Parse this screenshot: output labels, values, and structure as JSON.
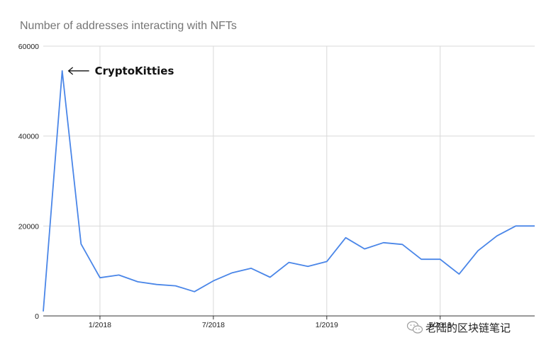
{
  "chart_data": {
    "type": "line",
    "title": "Number of addresses interacting with NFTs",
    "xlabel": "",
    "ylabel": "",
    "x": [
      "2017-10",
      "2017-11",
      "2017-12",
      "2018-01",
      "2018-02",
      "2018-03",
      "2018-04",
      "2018-05",
      "2018-06",
      "2018-07",
      "2018-08",
      "2018-09",
      "2018-10",
      "2018-11",
      "2018-12",
      "2019-01",
      "2019-02",
      "2019-03",
      "2019-04",
      "2019-05",
      "2019-06",
      "2019-07",
      "2019-08",
      "2019-09",
      "2019-10",
      "2019-11",
      "2019-12"
    ],
    "series": [
      {
        "values": [
          1000,
          54500,
          16000,
          8500,
          9100,
          7600,
          7000,
          6700,
          5400,
          7800,
          9600,
          10600,
          8600,
          11900,
          11000,
          12100,
          17400,
          14900,
          16300,
          15900,
          12600,
          12600,
          9300,
          14500,
          17800,
          20000,
          20000
        ],
        "color": "#4a86e8"
      }
    ],
    "ylim": [
      0,
      60000
    ],
    "yticks": [
      "0",
      "20000",
      "40000",
      "60000"
    ],
    "xticks": [
      {
        "label": "1/2018",
        "x": "2018-01"
      },
      {
        "label": "7/2018",
        "x": "2018-07"
      },
      {
        "label": "1/2019",
        "x": "2019-01"
      },
      {
        "label": "7/2019",
        "x": "2019-07"
      }
    ],
    "grid": true,
    "annotations": [
      {
        "text": "CryptoKitties",
        "x": "2017-11",
        "y": 54500,
        "arrow": "left"
      }
    ],
    "colors": {
      "line": "#4a86e8",
      "grid": "#d9d9d9",
      "axis": "#333333"
    }
  },
  "watermark": {
    "text": "老陆的区块链笔记",
    "icon": "wechat-icon"
  }
}
